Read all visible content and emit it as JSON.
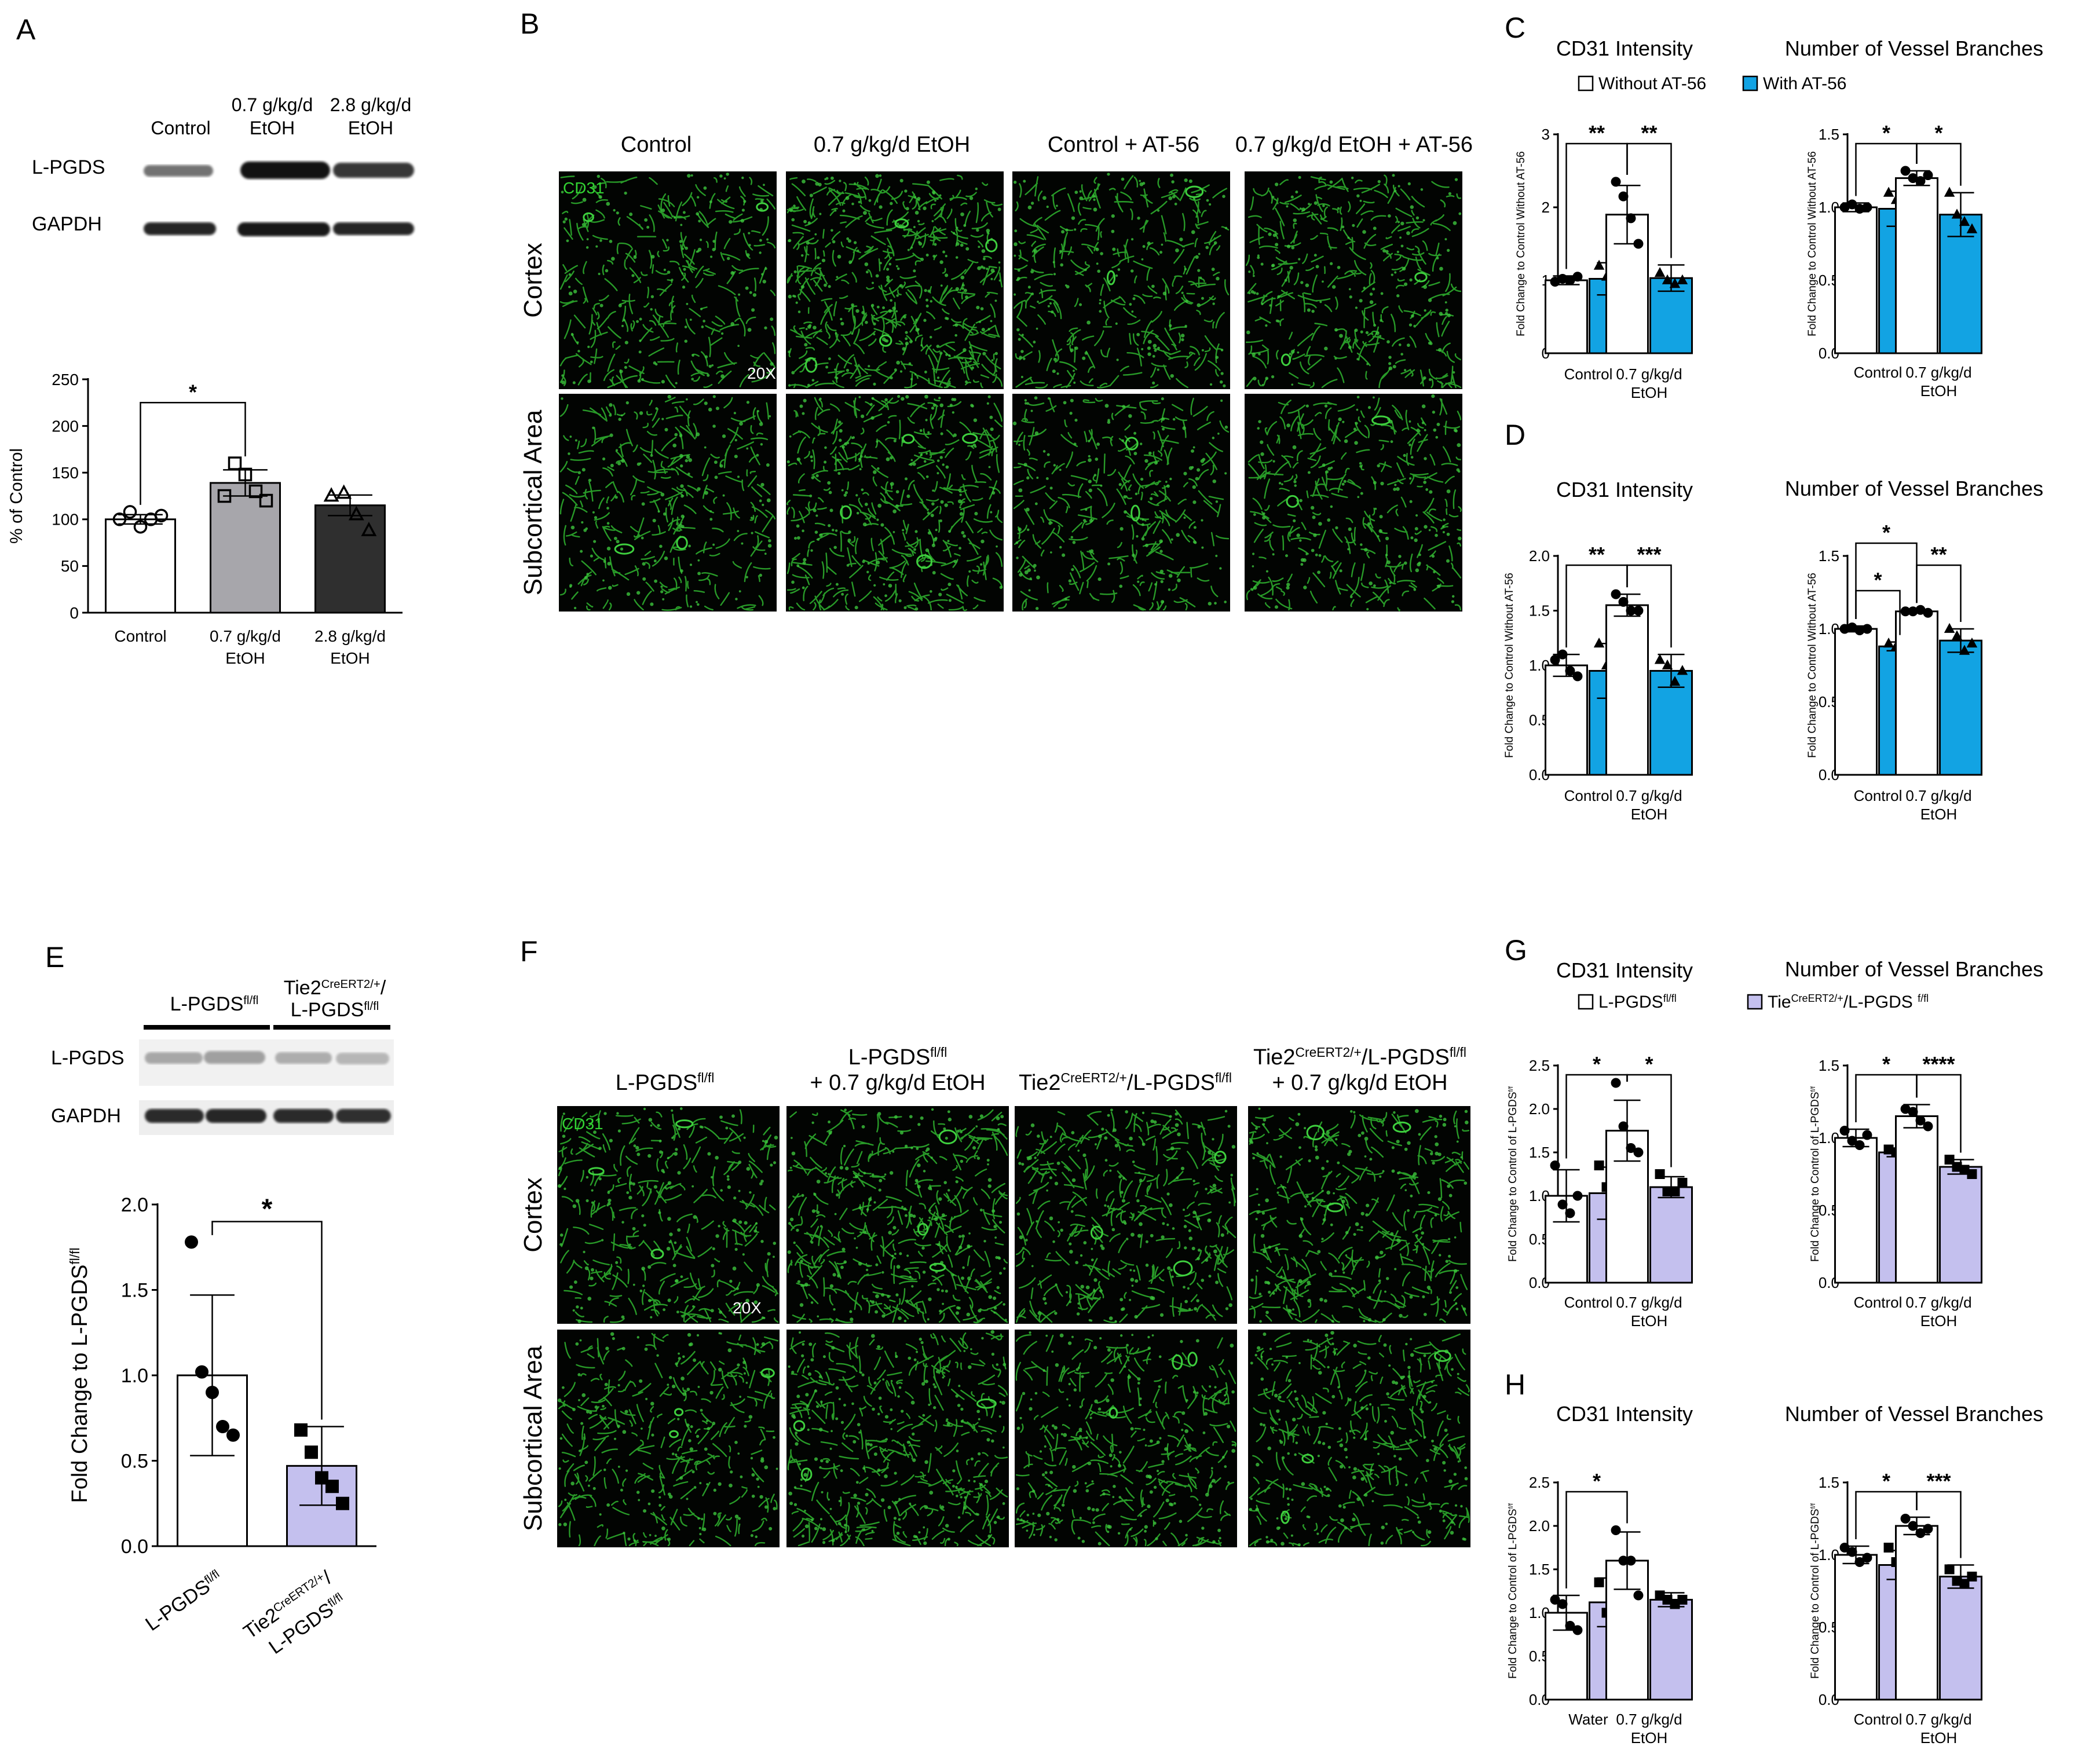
{
  "panels": {
    "A": {
      "letter": "A",
      "blot": {
        "lanes": [
          "Control",
          "0.7 g/kg/d\nEtOH",
          "2.8 g/kg/d\nEtOH"
        ],
        "rows": [
          "L-PGDS",
          "GAPDH"
        ]
      }
    },
    "B": {
      "letter": "B",
      "columns": [
        "Control",
        "0.7 g/kg/d EtOH",
        "Control + AT-56",
        "0.7 g/kg/d EtOH + AT-56"
      ],
      "rows": [
        "Cortex",
        "Subcortical Area"
      ],
      "stain": "CD31",
      "magnification": "20X"
    },
    "C": {
      "letter": "C"
    },
    "D": {
      "letter": "D"
    },
    "E": {
      "letter": "E",
      "blot": {
        "groups": [
          {
            "base": "L-PGDS",
            "sup": "fl/fl"
          },
          {
            "line1_base": "Tie2",
            "line1_sup": "CreERT2/+",
            "line1_tail": "/",
            "line2_base": "L-PGDS",
            "line2_sup": "fl/fl"
          }
        ],
        "rows": [
          "L-PGDS",
          "GAPDH"
        ]
      }
    },
    "F": {
      "letter": "F",
      "columns": [
        {
          "l1": [
            [
              "L-PGDS",
              ""
            ],
            [
              "fl/fl",
              "sup"
            ]
          ]
        },
        {
          "l1": [
            [
              "L-PGDS",
              ""
            ],
            [
              "fl/fl",
              "sup"
            ]
          ],
          "l2": "+ 0.7 g/kg/d EtOH"
        },
        {
          "l1": [
            [
              "Tie2",
              ""
            ],
            [
              "CreERT2/+",
              "sup"
            ],
            [
              "/L-PGDS",
              ""
            ],
            [
              "fl/fl",
              "sup"
            ]
          ]
        },
        {
          "l1": [
            [
              "Tie2",
              ""
            ],
            [
              "CreERT2/+",
              "sup"
            ],
            [
              "/L-PGDS",
              ""
            ],
            [
              "fl/fl",
              "sup"
            ]
          ],
          "l2": "+ 0.7 g/kg/d EtOH"
        }
      ],
      "rows": [
        "Cortex",
        "Subcortical Area"
      ],
      "stain": "CD31",
      "magnification": "20X"
    },
    "G": {
      "letter": "G"
    },
    "H": {
      "letter": "H"
    }
  },
  "legends": {
    "C": [
      {
        "label": "Without AT-56",
        "color": "#ffffff"
      },
      {
        "label": "With AT-56",
        "color": "#12a3e3"
      }
    ],
    "G": [
      {
        "label": [
          [
            "L-PGDS",
            ""
          ],
          [
            "fl/fl",
            "sup"
          ]
        ],
        "color": "#ffffff"
      },
      {
        "label": [
          [
            "Tie",
            ""
          ],
          [
            "CreERT2/+",
            "sup"
          ],
          [
            "/L-PGDS ",
            ""
          ],
          [
            "f/fl",
            "sup"
          ]
        ],
        "color": "#c4c0ee"
      }
    ]
  },
  "chart_data": [
    {
      "id": "A",
      "type": "bar",
      "categories": [
        "Control",
        "0.7 g/kg/d\nEtOH",
        "2.8 g/kg/d\nEtOH"
      ],
      "values": [
        100,
        139,
        115
      ],
      "errors": [
        5,
        14,
        11
      ],
      "colors": [
        "#ffffff",
        "#a7a6ab",
        "#2f2f2f"
      ],
      "markers": [
        "circle",
        "square",
        "triangle"
      ],
      "points": [
        [
          100,
          108,
          92,
          100,
          104
        ],
        [
          125,
          160,
          148,
          130,
          120
        ],
        [
          125,
          128,
          105,
          88
        ]
      ],
      "ylabel": "% of Control",
      "ylim": [
        0,
        250
      ],
      "yticks": [
        0,
        50,
        100,
        150,
        200,
        250
      ],
      "sig": [
        {
          "from": 0,
          "to": 1,
          "label": "*"
        }
      ]
    },
    {
      "id": "C1",
      "type": "bar",
      "title": "CD31 Intensity",
      "groups": [
        "Control",
        "0.7 g/kg/d\nEtOH"
      ],
      "series": [
        {
          "name": "Without AT-56",
          "values": [
            1.0,
            1.9
          ]
        },
        {
          "name": "With AT-56",
          "values": [
            1.02,
            1.03
          ]
        }
      ],
      "errors": [
        [
          0.06,
          0.4
        ],
        [
          0.22,
          0.18
        ]
      ],
      "points": [
        [
          [
            0.98,
            1.02,
            1.0,
            1.05
          ],
          [
            2.35,
            2.15,
            1.85,
            1.5
          ]
        ],
        [
          [
            1.2,
            1.05,
            0.95,
            0.8
          ],
          [
            1.1,
            1.0,
            0.95,
            1.0
          ]
        ]
      ],
      "ylabel": "Fold Change to Control Without AT-56",
      "ylim": [
        0,
        3
      ],
      "yticks": [
        0,
        1,
        2,
        3
      ],
      "sig": [
        {
          "from": 0,
          "to": 2,
          "label": "**"
        },
        {
          "from": 2,
          "to": 3,
          "label": "**"
        }
      ]
    },
    {
      "id": "C2",
      "type": "bar",
      "title": "Number of Vessel Branches",
      "groups": [
        "Control",
        "0.7 g/kg/d\nEtOH"
      ],
      "series": [
        {
          "name": "Without AT-56",
          "values": [
            1.0,
            1.2
          ]
        },
        {
          "name": "With AT-56",
          "values": [
            0.99,
            0.95
          ]
        }
      ],
      "errors": [
        [
          0.03,
          0.05
        ],
        [
          0.12,
          0.15
        ]
      ],
      "points": [
        [
          [
            1.0,
            1.02,
            0.99,
            1.0
          ],
          [
            1.25,
            1.2,
            1.18,
            1.22
          ]
        ],
        [
          [
            1.1,
            1.05,
            0.95,
            0.88
          ],
          [
            1.1,
            0.95,
            0.9,
            0.85
          ]
        ]
      ],
      "ylabel": "Fold Change to Control Without AT-56",
      "ylim": [
        0,
        1.5
      ],
      "yticks": [
        0.0,
        0.5,
        1.0,
        1.5
      ],
      "sig": [
        {
          "from": 0,
          "to": 2,
          "label": "*"
        },
        {
          "from": 2,
          "to": 3,
          "label": "*"
        }
      ]
    },
    {
      "id": "D1",
      "type": "bar",
      "title": "CD31 Intensity",
      "groups": [
        "Control",
        "0.7 g/kg/d\nEtOH"
      ],
      "series": [
        {
          "name": "Without AT-56",
          "values": [
            1.0,
            1.55
          ]
        },
        {
          "name": "With AT-56",
          "values": [
            0.95,
            0.95
          ]
        }
      ],
      "errors": [
        [
          0.1,
          0.1
        ],
        [
          0.25,
          0.15
        ]
      ],
      "points": [
        [
          [
            1.05,
            1.1,
            0.95,
            0.9
          ],
          [
            1.65,
            1.58,
            1.5,
            1.5
          ]
        ],
        [
          [
            1.2,
            1.0,
            0.85,
            0.75
          ],
          [
            1.05,
            1.0,
            0.85,
            0.95
          ]
        ]
      ],
      "ylabel": "Fold Change to Control Without AT-56",
      "ylim": [
        0,
        2
      ],
      "yticks": [
        0.0,
        0.5,
        1.0,
        1.5,
        2.0
      ],
      "sig": [
        {
          "from": 0,
          "to": 2,
          "label": "**"
        },
        {
          "from": 2,
          "to": 3,
          "label": "***"
        }
      ]
    },
    {
      "id": "D2",
      "type": "bar",
      "title": "Number of Vessel Branches",
      "groups": [
        "Control",
        "0.7 g/kg/d\nEtOH"
      ],
      "series": [
        {
          "name": "Without AT-56",
          "values": [
            1.0,
            1.12
          ]
        },
        {
          "name": "With AT-56",
          "values": [
            0.88,
            0.92
          ]
        }
      ],
      "errors": [
        [
          0.02,
          0.01
        ],
        [
          0.03,
          0.08
        ]
      ],
      "points": [
        [
          [
            1.0,
            1.01,
            0.99,
            1.0
          ],
          [
            1.12,
            1.12,
            1.13,
            1.11
          ]
        ],
        [
          [
            0.9,
            0.88,
            0.87,
            0.85
          ],
          [
            1.0,
            0.95,
            0.85,
            0.9
          ]
        ]
      ],
      "ylabel": "Fold Change to Control Without AT-56",
      "ylim": [
        0,
        1.5
      ],
      "yticks": [
        0.0,
        0.5,
        1.0,
        1.5
      ],
      "sig": [
        {
          "from": 0,
          "to": 1,
          "label": "*"
        },
        {
          "from": 0,
          "to": 2,
          "label": "*",
          "high": true
        },
        {
          "from": 2,
          "to": 3,
          "label": "**"
        }
      ]
    },
    {
      "id": "E",
      "type": "bar",
      "categories": [
        [
          [
            "L-PGDS",
            ""
          ],
          [
            "fl/fl",
            "sup"
          ]
        ],
        [
          [
            "Tie2",
            ""
          ],
          [
            "CreERT2/+",
            "sup"
          ],
          [
            "/",
            ""
          ]
        ]
      ],
      "categories_line2": [
        null,
        [
          [
            "L-PGDS",
            ""
          ],
          [
            "fl/fl",
            "sup"
          ]
        ]
      ],
      "values": [
        1.0,
        0.47
      ],
      "errors": [
        0.47,
        0.23
      ],
      "colors": [
        "#ffffff",
        "#c4c0ee"
      ],
      "markers": [
        "circle",
        "square"
      ],
      "points": [
        [
          1.78,
          1.02,
          0.9,
          0.7,
          0.65
        ],
        [
          0.68,
          0.55,
          0.4,
          0.35,
          0.25
        ]
      ],
      "ylabel_parts": [
        [
          "Fold Change to L-PGDS",
          ""
        ],
        [
          "fl/fl",
          "sup"
        ]
      ],
      "ylim": [
        0,
        2
      ],
      "yticks": [
        0.0,
        0.5,
        1.0,
        1.5,
        2.0
      ],
      "sig": [
        {
          "from": 0,
          "to": 1,
          "label": "*"
        }
      ]
    },
    {
      "id": "G1",
      "type": "bar",
      "title": "CD31 Intensity",
      "groups": [
        "Control",
        "0.7 g/kg/d\nEtOH"
      ],
      "series": [
        {
          "name": "L-PGDS fl/fl",
          "values": [
            1.0,
            1.75
          ]
        },
        {
          "name": "Tie CreERT2/+ / L-PGDS f/fl",
          "values": [
            1.03,
            1.1
          ]
        }
      ],
      "errors": [
        [
          0.3,
          0.35
        ],
        [
          0.3,
          0.12
        ]
      ],
      "points": [
        [
          [
            1.35,
            0.9,
            0.8,
            1.0
          ],
          [
            2.3,
            1.8,
            1.55,
            1.5
          ]
        ],
        [
          [
            1.35,
            1.1,
            0.85,
            0.9
          ],
          [
            1.25,
            1.05,
            1.05,
            1.15
          ]
        ]
      ],
      "ylabel_parts": [
        [
          "Fold Change to Control of L-PGDS",
          ""
        ],
        [
          "f/f",
          "sup"
        ]
      ],
      "ylim": [
        0,
        2.5
      ],
      "yticks": [
        0.0,
        0.5,
        1.0,
        1.5,
        2.0,
        2.5
      ],
      "sig": [
        {
          "from": 0,
          "to": 2,
          "label": "*"
        },
        {
          "from": 2,
          "to": 3,
          "label": "*"
        }
      ]
    },
    {
      "id": "G2",
      "type": "bar",
      "title": "Number of Vessel Branches",
      "groups": [
        "Control",
        "0.7 g/kg/d\nEtOH"
      ],
      "series": [
        {
          "name": "L-PGDS fl/fl",
          "values": [
            1.0,
            1.15
          ]
        },
        {
          "name": "Tie CreERT2/+ / L-PGDS f/fl",
          "values": [
            0.9,
            0.8
          ]
        }
      ],
      "errors": [
        [
          0.06,
          0.08
        ],
        [
          0.03,
          0.05
        ]
      ],
      "points": [
        [
          [
            1.05,
            0.98,
            0.95,
            1.02
          ],
          [
            1.2,
            1.18,
            1.12,
            1.08
          ]
        ],
        [
          [
            0.92,
            0.9,
            0.88,
            0.9
          ],
          [
            0.85,
            0.8,
            0.78,
            0.75
          ]
        ]
      ],
      "ylabel_parts": [
        [
          "Fold Change to Control of L-PGDS",
          ""
        ],
        [
          "f/f",
          "sup"
        ]
      ],
      "ylim": [
        0,
        1.5
      ],
      "yticks": [
        0.0,
        0.5,
        1.0,
        1.5
      ],
      "sig": [
        {
          "from": 0,
          "to": 2,
          "label": "*"
        },
        {
          "from": 2,
          "to": 3,
          "label": "****"
        }
      ]
    },
    {
      "id": "H1",
      "type": "bar",
      "title": "CD31 Intensity",
      "groups": [
        "Water",
        "0.7 g/kg/d\nEtOH"
      ],
      "series": [
        {
          "name": "L-PGDS fl/fl",
          "values": [
            1.0,
            1.6
          ]
        },
        {
          "name": "Tie CreERT2/+ / L-PGDS f/fl",
          "values": [
            1.12,
            1.15
          ]
        }
      ],
      "errors": [
        [
          0.2,
          0.33
        ],
        [
          0.28,
          0.08
        ]
      ],
      "points": [
        [
          [
            1.15,
            1.1,
            0.85,
            0.8
          ],
          [
            1.95,
            1.6,
            1.6,
            1.2
          ]
        ],
        [
          [
            1.35,
            1.0,
            1.1,
            0.9
          ],
          [
            1.2,
            1.15,
            1.1,
            1.15
          ]
        ]
      ],
      "ylabel_parts": [
        [
          "Fold Change to Control of L-PGDS",
          ""
        ],
        [
          "f/f",
          "sup"
        ]
      ],
      "ylim": [
        0,
        2.5
      ],
      "yticks": [
        0.0,
        0.5,
        1.0,
        1.5,
        2.0,
        2.5
      ],
      "sig": [
        {
          "from": 0,
          "to": 2,
          "label": "*"
        }
      ]
    },
    {
      "id": "H2",
      "type": "bar",
      "title": "Number of Vessel Branches",
      "groups": [
        "Control",
        "0.7 g/kg/d\nEtOH"
      ],
      "series": [
        {
          "name": "L-PGDS fl/fl",
          "values": [
            1.0,
            1.2
          ]
        },
        {
          "name": "Tie CreERT2/+ / L-PGDS f/fl",
          "values": [
            0.93,
            0.85
          ]
        }
      ],
      "errors": [
        [
          0.06,
          0.06
        ],
        [
          0.1,
          0.08
        ]
      ],
      "points": [
        [
          [
            1.05,
            1.02,
            0.95,
            0.98
          ],
          [
            1.25,
            1.2,
            1.15,
            1.18
          ]
        ],
        [
          [
            1.05,
            0.95,
            0.85,
            0.88
          ],
          [
            0.9,
            0.82,
            0.8,
            0.85
          ]
        ]
      ],
      "ylabel_parts": [
        [
          "Fold Change to Control of L-PGDS",
          ""
        ],
        [
          "f/f",
          "sup"
        ]
      ],
      "ylim": [
        0,
        1.5
      ],
      "yticks": [
        0.0,
        0.5,
        1.0,
        1.5
      ],
      "sig": [
        {
          "from": 0,
          "to": 2,
          "label": "*"
        },
        {
          "from": 2,
          "to": 3,
          "label": "***"
        }
      ]
    }
  ]
}
